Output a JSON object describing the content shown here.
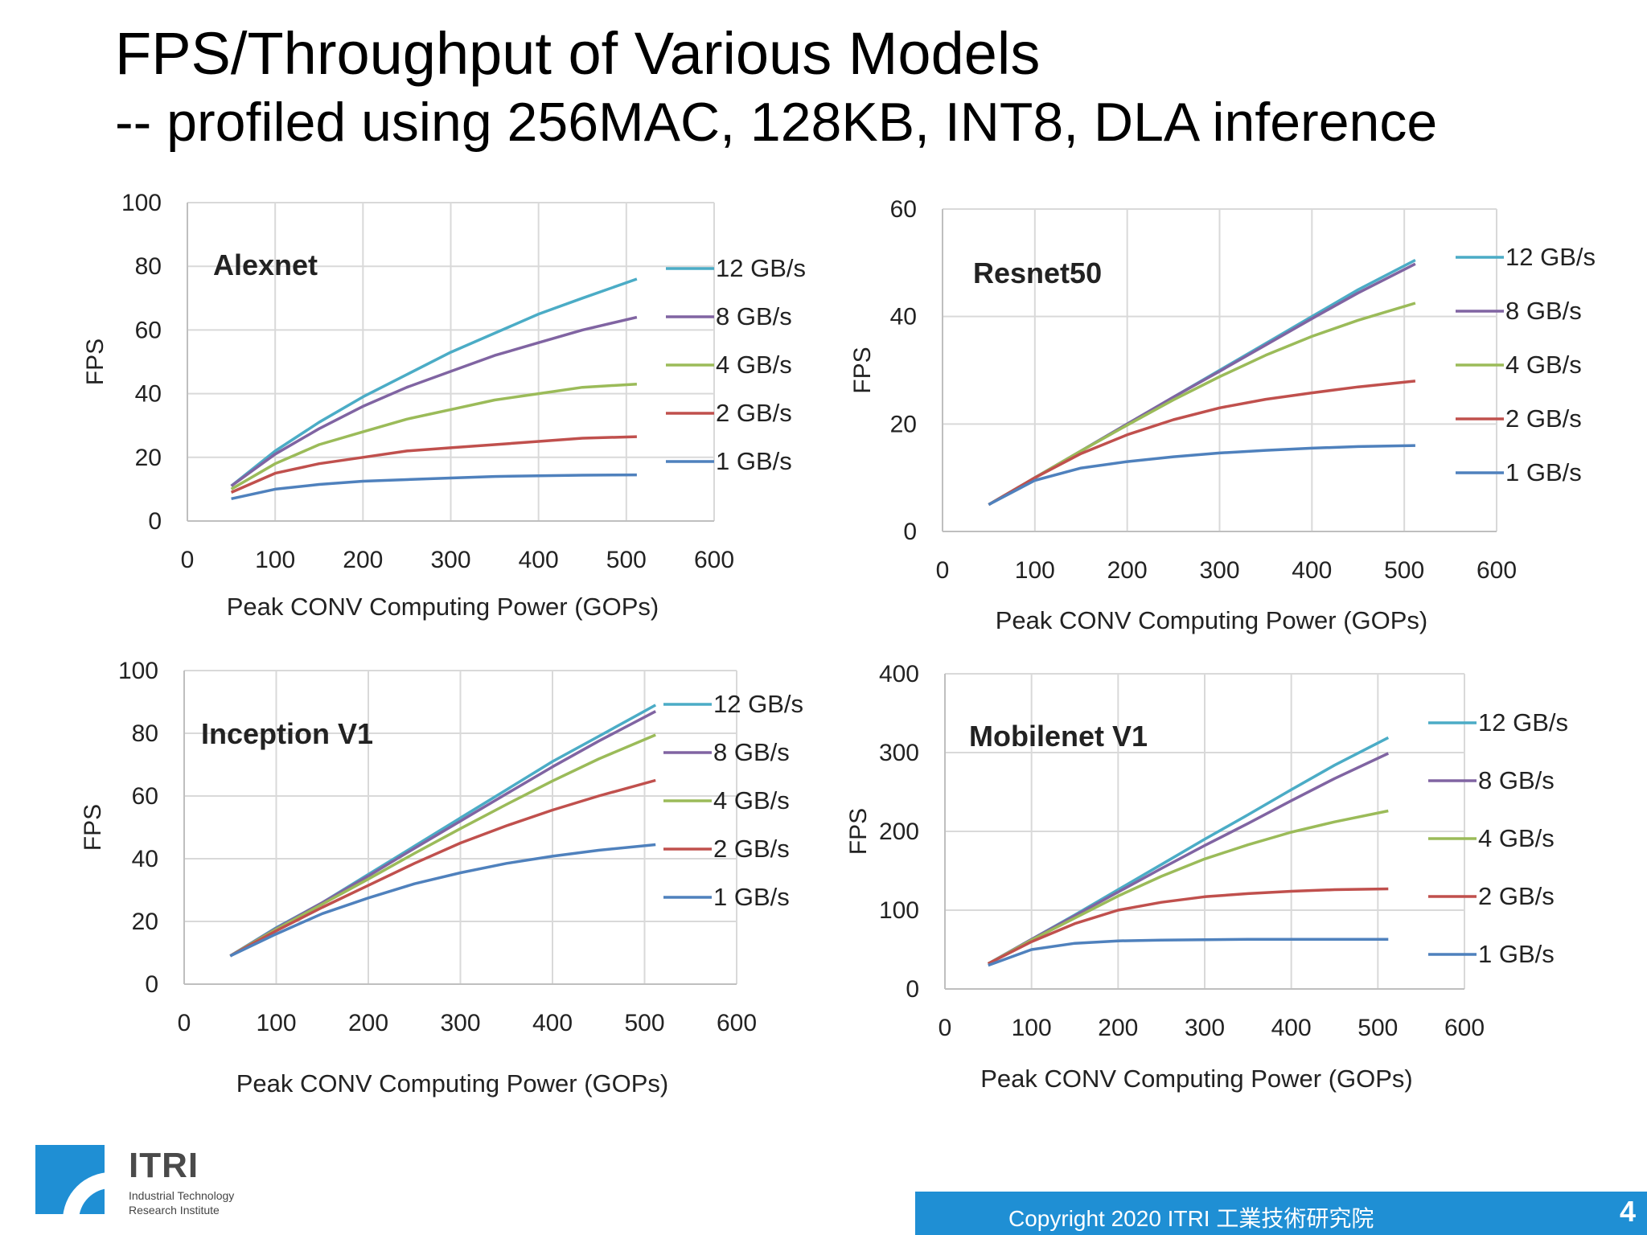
{
  "slide": {
    "title": "FPS/Throughput of Various Models",
    "subtitle": "-- profiled using  256MAC, 128KB, INT8, DLA inference"
  },
  "footer": {
    "logo_name": "ITRI",
    "logo_tagline": "Industrial Technology Research Institute",
    "copyright": "Copyright 2020  ITRI  工業技術研究院",
    "page_number": "4"
  },
  "colors": {
    "12 GB/s": "#4bacc6",
    "8 GB/s": "#8064a2",
    "4 GB/s": "#9bbb59",
    "2 GB/s": "#c0504d",
    "1 GB/s": "#4f81bd"
  },
  "chart_data": [
    {
      "type": "line",
      "title": "Alexnet",
      "xlabel": "Peak CONV Computing Power  (GOPs)",
      "ylabel": "FPS",
      "xlim": [
        0,
        600
      ],
      "ylim": [
        0,
        100
      ],
      "xticks": [
        0,
        100,
        200,
        300,
        400,
        500,
        600
      ],
      "yticks": [
        0,
        20,
        40,
        60,
        80,
        100
      ],
      "grid": true,
      "legend": "right",
      "x": [
        50,
        100,
        150,
        200,
        250,
        300,
        350,
        400,
        450,
        512
      ],
      "series": [
        {
          "name": "12 GB/s",
          "values": [
            11,
            22,
            31,
            39,
            46,
            53,
            59,
            65,
            70,
            76
          ]
        },
        {
          "name": "8 GB/s",
          "values": [
            11,
            21,
            29,
            36,
            42,
            47,
            52,
            56,
            60,
            64
          ]
        },
        {
          "name": "4 GB/s",
          "values": [
            10,
            18,
            24,
            28,
            32,
            35,
            38,
            40,
            42,
            43
          ]
        },
        {
          "name": "2 GB/s",
          "values": [
            9,
            15,
            18,
            20,
            22,
            23,
            24,
            25,
            26,
            26.5
          ]
        },
        {
          "name": "1 GB/s",
          "values": [
            7,
            10,
            11.5,
            12.5,
            13,
            13.5,
            14,
            14.2,
            14.4,
            14.5
          ]
        }
      ]
    },
    {
      "type": "line",
      "title": "Resnet50",
      "xlabel": "Peak CONV Computing Power  (GOPs)",
      "ylabel": "FPS",
      "xlim": [
        0,
        600
      ],
      "ylim": [
        0,
        60
      ],
      "xticks": [
        0,
        100,
        200,
        300,
        400,
        500,
        600
      ],
      "yticks": [
        0,
        20,
        40,
        60
      ],
      "grid": true,
      "legend": "right",
      "x": [
        50,
        100,
        150,
        200,
        250,
        300,
        350,
        400,
        450,
        512
      ],
      "series": [
        {
          "name": "12 GB/s",
          "values": [
            5,
            10,
            15,
            20,
            25,
            30,
            35,
            40,
            45,
            50.5
          ]
        },
        {
          "name": "8 GB/s",
          "values": [
            5,
            10,
            15,
            20,
            25,
            29.8,
            34.7,
            39.6,
            44.4,
            49.8
          ]
        },
        {
          "name": "4 GB/s",
          "values": [
            5,
            10,
            15,
            19.8,
            24.5,
            28.8,
            32.8,
            36.3,
            39.3,
            42.5
          ]
        },
        {
          "name": "2 GB/s",
          "values": [
            5,
            10,
            14.5,
            18,
            20.8,
            23,
            24.6,
            25.8,
            26.9,
            28
          ]
        },
        {
          "name": "1 GB/s",
          "values": [
            5,
            9.5,
            11.8,
            13,
            13.9,
            14.6,
            15.1,
            15.5,
            15.8,
            16
          ]
        }
      ]
    },
    {
      "type": "line",
      "title": "Inception V1",
      "xlabel": "Peak CONV Computing Power  (GOPs)",
      "ylabel": "FPS",
      "xlim": [
        0,
        600
      ],
      "ylim": [
        0,
        100
      ],
      "xticks": [
        0,
        100,
        200,
        300,
        400,
        500,
        600
      ],
      "yticks": [
        0,
        20,
        40,
        60,
        80,
        100
      ],
      "grid": true,
      "legend": "right",
      "x": [
        50,
        100,
        150,
        200,
        250,
        300,
        350,
        400,
        450,
        512
      ],
      "series": [
        {
          "name": "12 GB/s",
          "values": [
            9,
            18,
            26,
            35,
            44,
            53,
            62,
            71,
            79,
            89
          ]
        },
        {
          "name": "8 GB/s",
          "values": [
            9,
            17.8,
            26,
            34.5,
            43.3,
            52,
            60.7,
            69.3,
            77.5,
            87
          ]
        },
        {
          "name": "4 GB/s",
          "values": [
            9,
            17.5,
            25.5,
            33.5,
            41.7,
            49.6,
            57.3,
            64.8,
            71.8,
            79.5
          ]
        },
        {
          "name": "2 GB/s",
          "values": [
            9,
            17,
            24.5,
            31.5,
            38.5,
            45,
            50.5,
            55.5,
            60,
            65
          ]
        },
        {
          "name": "1 GB/s",
          "values": [
            9,
            16,
            22.5,
            27.5,
            32,
            35.5,
            38.5,
            40.8,
            42.7,
            44.5
          ]
        }
      ]
    },
    {
      "type": "line",
      "title": "Mobilenet V1",
      "xlabel": "Peak CONV Computing Power  (GOPs)",
      "ylabel": "FPS",
      "xlim": [
        0,
        600
      ],
      "ylim": [
        0,
        400
      ],
      "xticks": [
        0,
        100,
        200,
        300,
        400,
        500,
        600
      ],
      "yticks": [
        0,
        100,
        200,
        300,
        400
      ],
      "grid": true,
      "legend": "right",
      "x": [
        50,
        100,
        150,
        200,
        250,
        300,
        350,
        400,
        450,
        512
      ],
      "series": [
        {
          "name": "12 GB/s",
          "values": [
            32,
            63,
            94,
            126,
            158,
            190,
            221,
            253,
            284,
            319
          ]
        },
        {
          "name": "8 GB/s",
          "values": [
            32,
            63,
            93,
            123,
            153,
            182,
            210,
            239,
            267,
            299
          ]
        },
        {
          "name": "4 GB/s",
          "values": [
            32,
            62,
            90,
            118,
            143,
            165,
            183,
            199,
            212,
            226
          ]
        },
        {
          "name": "2 GB/s",
          "values": [
            32,
            60,
            83,
            100,
            110,
            117,
            121,
            124,
            126,
            127
          ]
        },
        {
          "name": "1 GB/s",
          "values": [
            30,
            50,
            58,
            61,
            62,
            62.5,
            63,
            63,
            63,
            63
          ]
        }
      ]
    }
  ]
}
